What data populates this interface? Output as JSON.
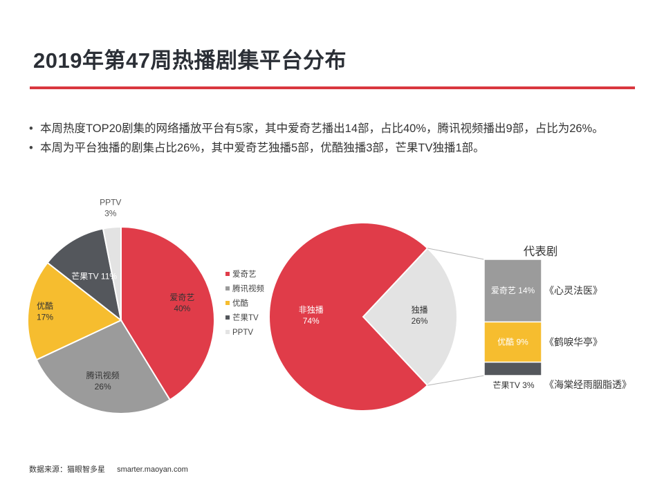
{
  "header": {
    "title": "2019年第47周热播剧集平台分布"
  },
  "bullets": [
    "本周热度TOP20剧集的网络播放平台有5家，其中爱奇艺播出14部，占比40%，腾讯视频播出9部，占比为26%。",
    "本周为平台独播的剧集占比26%，其中爱奇艺独播5部，优酷独播3部，芒果TV独播1部。"
  ],
  "footer": {
    "source_label": "数据来源：猫眼智多星",
    "source_url": "smarter.maoyan.com"
  },
  "chart_data": [
    {
      "type": "pie",
      "title": "",
      "legend_position": "right",
      "slices": [
        {
          "name": "爱奇艺",
          "value": 40,
          "label": "40%",
          "color": "#e03c49"
        },
        {
          "name": "腾讯视频",
          "value": 26,
          "label": "26%",
          "color": "#9b9b9b"
        },
        {
          "name": "优酷",
          "value": 17,
          "label": "17%",
          "color": "#f6bd2f"
        },
        {
          "name": "芒果TV",
          "value": 11,
          "label": "11%",
          "color": "#54575c"
        },
        {
          "name": "PPTV",
          "value": 3,
          "label": "3%",
          "color": "#e3e3e3"
        }
      ]
    },
    {
      "type": "pie",
      "title": "",
      "slices": [
        {
          "name": "非独播",
          "value": 74,
          "label": "74%",
          "color": "#e03c49"
        },
        {
          "name": "独播",
          "value": 26,
          "label": "26%",
          "color": "#e3e3e3"
        }
      ]
    },
    {
      "type": "bar",
      "stacked": true,
      "title": "代表剧",
      "segments": [
        {
          "platform": "爱奇艺",
          "value": 14,
          "label": "14%",
          "drama": "《心灵法医》",
          "color": "#9b9b9b"
        },
        {
          "platform": "优酷",
          "value": 9,
          "label": "9%",
          "drama": "《鹤唳华亭》",
          "color": "#f6bd2f"
        },
        {
          "platform": "芒果TV",
          "value": 3,
          "label": "3%",
          "drama": "《海棠经雨胭脂透》",
          "color": "#54575c"
        }
      ]
    }
  ]
}
